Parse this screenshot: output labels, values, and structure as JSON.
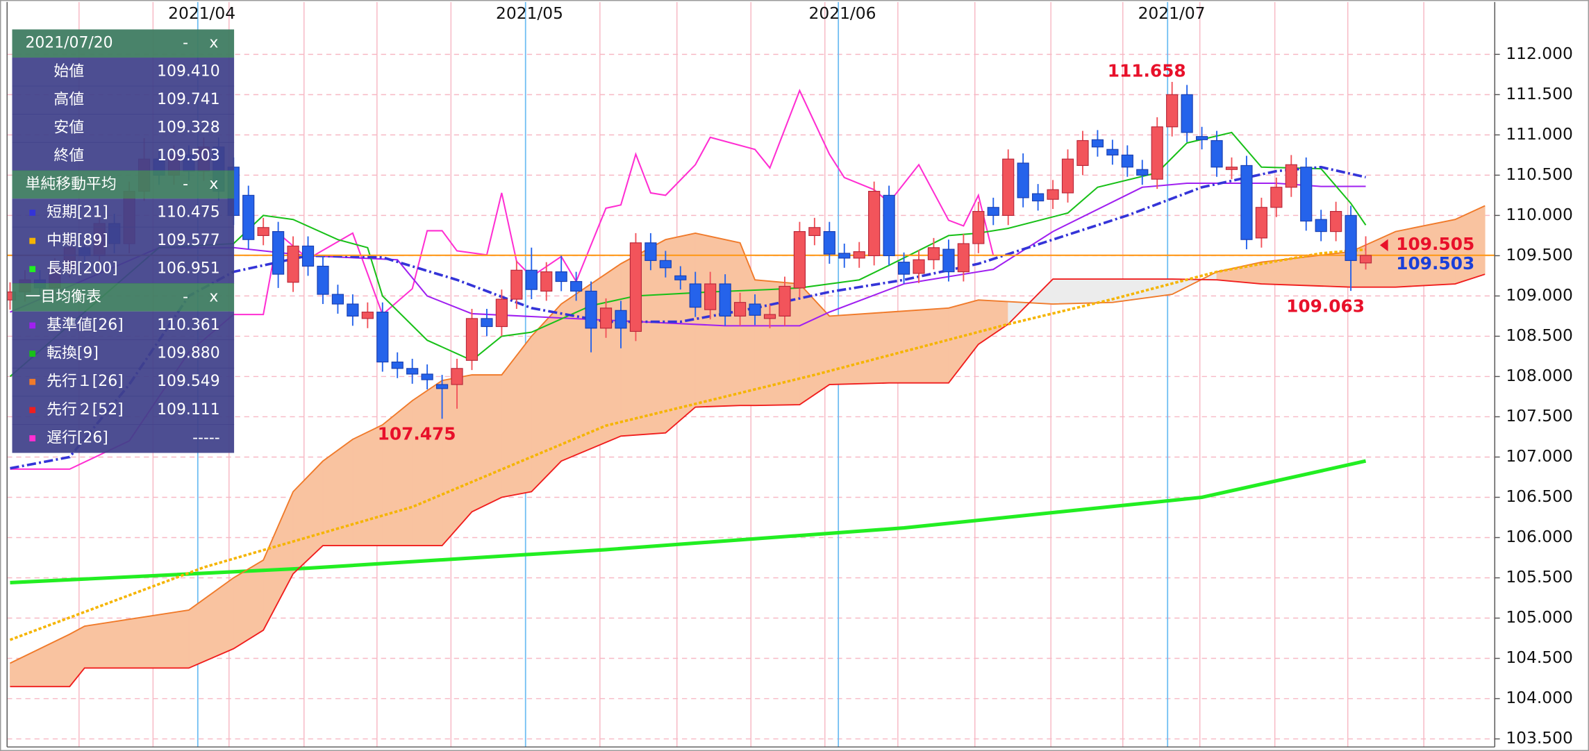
{
  "chart_data": {
    "type": "candlestick",
    "xlim": [
      -0.2,
      99.66
    ],
    "ylim": [
      103.4,
      112.65
    ],
    "xticks": [
      {
        "value": 12.6,
        "label": "2021/04"
      },
      {
        "value": 34.6,
        "label": "2021/05"
      },
      {
        "value": 55.6,
        "label": "2021/06"
      },
      {
        "value": 77.7,
        "label": "2021/07"
      }
    ],
    "yticks": [
      {
        "value": 103.5,
        "label": "103.500"
      },
      {
        "value": 104.0,
        "label": "104.000"
      },
      {
        "value": 104.5,
        "label": "104.500"
      },
      {
        "value": 105.0,
        "label": "105.000"
      },
      {
        "value": 105.5,
        "label": "105.500"
      },
      {
        "value": 106.0,
        "label": "106.000"
      },
      {
        "value": 106.5,
        "label": "106.500"
      },
      {
        "value": 107.0,
        "label": "107.000"
      },
      {
        "value": 107.5,
        "label": "107.500"
      },
      {
        "value": 108.0,
        "label": "108.000"
      },
      {
        "value": 108.5,
        "label": "108.500"
      },
      {
        "value": 109.0,
        "label": "109.000"
      },
      {
        "value": 109.5,
        "label": "109.500"
      },
      {
        "value": 110.0,
        "label": "110.000"
      },
      {
        "value": 110.5,
        "label": "110.500"
      },
      {
        "value": 111.0,
        "label": "111.000"
      },
      {
        "value": 111.5,
        "label": "111.500"
      },
      {
        "value": 112.0,
        "label": "112.000"
      }
    ],
    "grid": true,
    "up_color": "#f2545b",
    "down_color": "#2563eb",
    "x": [
      0,
      1,
      2,
      3,
      4,
      5,
      6,
      7,
      8,
      9,
      10,
      11,
      12,
      13,
      14,
      15,
      16,
      17,
      18,
      19,
      20,
      21,
      22,
      23,
      24,
      25,
      26,
      27,
      28,
      29,
      30,
      31,
      32,
      33,
      34,
      35,
      36,
      37,
      38,
      39,
      40,
      41,
      42,
      43,
      44,
      45,
      46,
      47,
      48,
      49,
      50,
      51,
      52,
      53,
      54,
      55,
      56,
      57,
      58,
      59,
      60,
      61,
      62,
      63,
      64,
      65,
      66,
      67,
      68,
      69,
      70,
      71,
      72,
      73,
      74,
      75,
      76,
      77,
      78,
      79,
      80,
      81,
      82,
      83,
      84,
      85,
      86,
      87,
      88,
      89,
      90,
      91
    ],
    "open": [
      108.95,
      109.05,
      109.2,
      109.1,
      109.35,
      109.6,
      109.5,
      109.9,
      109.65,
      110.3,
      110.7,
      110.5,
      110.75,
      110.55,
      110.85,
      110.6,
      110.25,
      109.75,
      109.8,
      109.17,
      109.62,
      109.37,
      109.02,
      108.9,
      108.72,
      108.8,
      108.18,
      108.1,
      108.03,
      107.9,
      107.9,
      108.2,
      108.72,
      108.62,
      108.96,
      109.32,
      109.06,
      109.3,
      109.18,
      109.06,
      108.6,
      108.82,
      108.56,
      109.66,
      109.44,
      109.25,
      109.15,
      108.83,
      109.15,
      108.75,
      108.9,
      108.72,
      108.75,
      109.1,
      109.75,
      109.8,
      109.53,
      109.47,
      109.5,
      110.25,
      109.42,
      109.28,
      109.45,
      109.58,
      109.3,
      109.65,
      110.1,
      110.0,
      110.65,
      110.27,
      110.2,
      110.28,
      110.62,
      110.94,
      110.82,
      110.75,
      110.57,
      110.45,
      111.1,
      111.5,
      110.98,
      110.93,
      110.57,
      110.62,
      109.72,
      110.1,
      110.35,
      110.6,
      109.95,
      109.8,
      110.0,
      109.41
    ],
    "high": [
      109.17,
      109.32,
      109.32,
      109.47,
      109.72,
      109.72,
      110.02,
      110.02,
      110.42,
      110.96,
      110.82,
      110.87,
      110.87,
      110.97,
      110.97,
      110.72,
      110.37,
      109.97,
      109.92,
      109.74,
      109.74,
      109.49,
      109.14,
      109.02,
      108.92,
      108.92,
      108.3,
      108.22,
      108.15,
      108.02,
      108.22,
      108.84,
      108.84,
      109.08,
      109.44,
      109.6,
      109.42,
      109.5,
      109.3,
      109.18,
      108.97,
      108.94,
      109.78,
      109.78,
      109.56,
      109.37,
      109.3,
      109.3,
      109.27,
      109.04,
      109.02,
      108.89,
      109.24,
      109.92,
      109.97,
      109.92,
      109.65,
      109.67,
      110.42,
      110.37,
      109.54,
      109.57,
      109.72,
      109.7,
      109.77,
      110.17,
      110.22,
      110.82,
      110.77,
      110.39,
      110.44,
      110.82,
      111.05,
      111.06,
      110.94,
      110.87,
      110.69,
      111.22,
      111.658,
      111.62,
      111.1,
      111.05,
      110.72,
      110.74,
      110.22,
      110.47,
      110.75,
      110.72,
      110.07,
      110.17,
      110.12,
      109.741
    ],
    "low": [
      108.83,
      108.93,
      108.98,
      108.98,
      109.23,
      109.38,
      109.38,
      109.53,
      109.53,
      110.18,
      110.38,
      110.38,
      110.43,
      110.43,
      110.18,
      109.88,
      109.58,
      109.63,
      109.1,
      109.05,
      109.25,
      108.9,
      108.78,
      108.63,
      108.6,
      108.06,
      107.98,
      107.91,
      107.84,
      107.475,
      107.6,
      108.08,
      108.5,
      108.5,
      108.84,
      108.96,
      108.94,
      109.06,
      108.94,
      108.3,
      108.48,
      108.35,
      108.44,
      109.32,
      109.23,
      109.08,
      108.74,
      108.71,
      108.63,
      108.63,
      108.64,
      108.6,
      108.63,
      108.98,
      109.63,
      109.4,
      109.35,
      109.35,
      109.38,
      109.38,
      109.15,
      109.16,
      109.33,
      109.18,
      109.18,
      109.53,
      109.88,
      109.88,
      110.1,
      110.06,
      110.08,
      110.16,
      110.5,
      110.73,
      110.63,
      110.48,
      110.38,
      110.33,
      110.98,
      110.91,
      110.82,
      110.48,
      110.45,
      109.58,
      109.6,
      109.98,
      110.23,
      109.81,
      109.68,
      109.68,
      109.063,
      109.328
    ],
    "close": [
      109.05,
      109.2,
      109.1,
      109.35,
      109.6,
      109.5,
      109.9,
      109.65,
      110.3,
      110.7,
      110.5,
      110.75,
      110.55,
      110.85,
      110.3,
      110.0,
      109.7,
      109.85,
      109.27,
      109.62,
      109.37,
      109.02,
      108.9,
      108.75,
      108.8,
      108.18,
      108.1,
      108.03,
      107.96,
      107.85,
      108.1,
      108.72,
      108.62,
      108.96,
      109.32,
      109.08,
      109.3,
      109.18,
      109.06,
      108.6,
      108.85,
      108.6,
      109.66,
      109.44,
      109.35,
      109.2,
      108.86,
      109.15,
      108.75,
      108.92,
      108.76,
      108.77,
      109.12,
      109.8,
      109.85,
      109.52,
      109.47,
      109.55,
      110.3,
      109.5,
      109.27,
      109.45,
      109.6,
      109.3,
      109.65,
      110.05,
      110.0,
      110.7,
      110.22,
      110.18,
      110.32,
      110.7,
      110.93,
      110.85,
      110.75,
      110.6,
      110.5,
      111.1,
      111.5,
      111.03,
      110.94,
      110.6,
      110.6,
      109.7,
      110.1,
      110.35,
      110.63,
      109.93,
      109.8,
      110.05,
      109.44,
      109.503
    ],
    "lines": [
      {
        "name": "短期[21]",
        "color": "#3434d8",
        "style": "dashdot",
        "width": 2.5,
        "x": [
          0,
          4,
          8,
          12,
          15,
          20,
          25,
          30,
          35,
          40,
          45,
          50,
          55,
          60,
          65,
          70,
          75,
          80,
          85,
          88,
          91
        ],
        "values": [
          106.86,
          107.0,
          107.9,
          109.0,
          109.3,
          109.5,
          109.48,
          109.2,
          108.85,
          108.68,
          108.68,
          108.85,
          109.05,
          109.2,
          109.4,
          109.7,
          110.0,
          110.35,
          110.55,
          110.6,
          110.475
        ]
      },
      {
        "name": "中期[89]",
        "color": "#f5b400",
        "style": "dotted",
        "width": 2.5,
        "x": [
          0,
          13,
          27,
          40,
          54,
          67,
          74,
          81,
          88,
          91
        ],
        "values": [
          104.73,
          105.63,
          106.38,
          107.39,
          108.02,
          108.65,
          108.96,
          109.3,
          109.53,
          109.577
        ]
      },
      {
        "name": "長期[200]",
        "color": "#22ee22",
        "style": "solid",
        "width": 3.5,
        "x": [
          0,
          20,
          40,
          60,
          80,
          91
        ],
        "values": [
          105.44,
          105.62,
          105.85,
          106.12,
          106.5,
          106.951
        ]
      },
      {
        "name": "基準値[26]",
        "color": "#a020f0",
        "style": "solid",
        "width": 1.4,
        "x": [
          0,
          5,
          10,
          15,
          20,
          26,
          28,
          31,
          40,
          48,
          53,
          55,
          60,
          66,
          70,
          76,
          79,
          85,
          88,
          91
        ],
        "values": [
          108.8,
          109.2,
          109.6,
          109.6,
          109.5,
          109.45,
          109.0,
          108.78,
          108.7,
          108.63,
          108.63,
          108.8,
          109.15,
          109.33,
          109.8,
          110.35,
          110.4,
          110.4,
          110.36,
          110.361
        ]
      },
      {
        "name": "転換[9]",
        "color": "#18c018",
        "style": "solid",
        "width": 1.4,
        "x": [
          0,
          5,
          10,
          15,
          17,
          19,
          22,
          24,
          25,
          28,
          31,
          33,
          35,
          39,
          42,
          47,
          51,
          53,
          57,
          59,
          63,
          65,
          67,
          71,
          73,
          77,
          79,
          82,
          84,
          88,
          90,
          91
        ],
        "values": [
          108.0,
          108.8,
          109.6,
          109.65,
          110.0,
          109.95,
          109.7,
          109.6,
          109.0,
          108.45,
          108.2,
          108.5,
          108.55,
          108.88,
          109.0,
          109.05,
          109.08,
          109.1,
          109.2,
          109.38,
          109.75,
          109.78,
          109.84,
          110.03,
          110.35,
          110.53,
          110.9,
          111.03,
          110.6,
          110.58,
          110.15,
          109.88
        ]
      },
      {
        "name": "先行１[26]",
        "color": "#f07a2a",
        "style": "solid",
        "width": 1.3,
        "cloud": true,
        "x": [
          0,
          4,
          5,
          12,
          15,
          17,
          19,
          21,
          23,
          25,
          27,
          29,
          31,
          33,
          35,
          37,
          41,
          44,
          46,
          49,
          50,
          53,
          55,
          59,
          63,
          65,
          67,
          70,
          74,
          78,
          81,
          84,
          90,
          93,
          97,
          99
        ],
        "values": [
          104.44,
          104.8,
          104.9,
          105.1,
          105.5,
          105.72,
          106.57,
          106.95,
          107.22,
          107.4,
          107.7,
          107.95,
          108.02,
          108.02,
          108.5,
          108.9,
          109.4,
          109.7,
          109.78,
          109.66,
          109.2,
          109.15,
          108.75,
          108.8,
          108.85,
          108.95,
          108.93,
          108.9,
          108.92,
          109.02,
          109.3,
          109.42,
          109.55,
          109.8,
          109.95,
          110.12
        ]
      },
      {
        "name": "先行２[52]",
        "color": "#f01e1e",
        "style": "solid",
        "width": 1.3,
        "cloud": true,
        "x": [
          0,
          4,
          5,
          12,
          15,
          17,
          19,
          21,
          23,
          25,
          27,
          29,
          31,
          33,
          35,
          37,
          41,
          44,
          46,
          49,
          50,
          53,
          55,
          59,
          63,
          65,
          67,
          70,
          74,
          78,
          81,
          84,
          90,
          93,
          97,
          99
        ],
        "values": [
          104.15,
          104.15,
          104.38,
          104.38,
          104.62,
          104.85,
          105.55,
          105.9,
          105.9,
          105.9,
          105.9,
          105.9,
          106.32,
          106.5,
          106.57,
          106.95,
          107.26,
          107.3,
          107.62,
          107.64,
          107.64,
          107.65,
          107.9,
          107.92,
          107.92,
          108.4,
          108.65,
          109.21,
          109.21,
          109.21,
          109.2,
          109.15,
          109.11,
          109.11,
          109.15,
          109.27
        ]
      },
      {
        "name": "遅行[26]",
        "color": "#ff2ed2",
        "style": "solid",
        "width": 1.4,
        "x": [
          0,
          4,
          8,
          12,
          15,
          17,
          18,
          20,
          23,
          25,
          27,
          28,
          29,
          30,
          32,
          33,
          34,
          35,
          37,
          38,
          40,
          41,
          42,
          43,
          44,
          46,
          47,
          50,
          51,
          53,
          55,
          56,
          58,
          59,
          61,
          63,
          64,
          65,
          66
        ],
        "values": [
          106.85,
          106.85,
          107.2,
          108.3,
          108.77,
          108.77,
          109.78,
          109.46,
          109.78,
          108.77,
          109.09,
          109.81,
          109.81,
          109.56,
          109.51,
          110.28,
          109.43,
          109.24,
          109.49,
          109.18,
          110.09,
          110.13,
          110.76,
          110.28,
          110.25,
          110.63,
          110.97,
          110.82,
          110.59,
          111.55,
          110.76,
          110.47,
          110.32,
          110.16,
          110.63,
          109.94,
          109.87,
          110.25,
          109.503
        ]
      }
    ],
    "cloud_colors": [
      "#f9c3a0",
      "#ececec"
    ],
    "annotations": [
      {
        "x": 78,
        "value": 111.658,
        "position": "above",
        "color": "#e8102a"
      },
      {
        "x": 29,
        "value": 107.475,
        "position": "below",
        "color": "#e8102a"
      },
      {
        "x": 90,
        "value": 109.063,
        "position": "below",
        "color": "#e8102a"
      }
    ],
    "price_line": {
      "value": 109.505,
      "color": "#ff9a1a",
      "label_color": "#e8102a"
    },
    "close_label": {
      "value": 109.503,
      "color": "#1a3fd8"
    }
  },
  "panel": {
    "date": "2021/07/20",
    "minimize": "-",
    "close": "x",
    "ohlc": [
      {
        "label": "始値",
        "value": "109.410"
      },
      {
        "label": "高値",
        "value": "109.741"
      },
      {
        "label": "安値",
        "value": "109.328"
      },
      {
        "label": "終値",
        "value": "109.503"
      }
    ],
    "sma_title": "単純移動平均",
    "sma_values": [
      "110.475",
      "109.577",
      "106.951"
    ],
    "ichimoku_title": "一目均衡表",
    "ichimoku_values": [
      "110.361",
      "109.880",
      "109.549",
      "109.111",
      "-----"
    ]
  }
}
